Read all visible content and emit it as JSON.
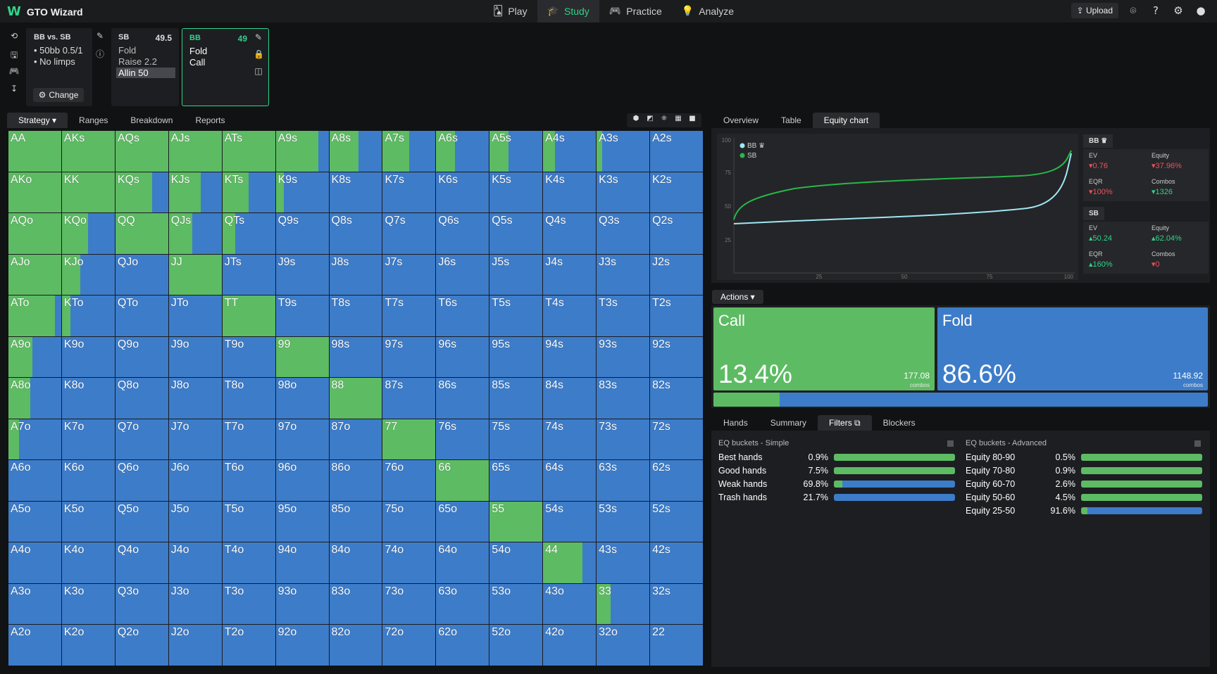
{
  "app": {
    "title": "GTO Wizard",
    "logo": "W"
  },
  "nav": [
    {
      "label": "Play",
      "icon": "cards-icon",
      "glyph": "🂡",
      "active": false
    },
    {
      "label": "Study",
      "icon": "graduation-cap-icon",
      "glyph": "🎓",
      "active": true
    },
    {
      "label": "Practice",
      "icon": "gamepad-icon",
      "glyph": "🎮",
      "active": false
    },
    {
      "label": "Analyze",
      "icon": "lightbulb-icon",
      "glyph": "💡",
      "active": false
    }
  ],
  "top_right": {
    "upload": "⇪ Upload",
    "icons": [
      "scan-icon",
      "help-icon",
      "settings-icon",
      "user-icon"
    ],
    "glyphs": [
      "⌾",
      "?",
      "⚙",
      "●"
    ]
  },
  "side_icons": [
    "⟲",
    "🖫",
    "🎮",
    "↧"
  ],
  "spot": {
    "title": "BB vs. SB",
    "lines": [
      "• 50bb 0.5/1",
      "• No limps"
    ],
    "change": "Change"
  },
  "card_sb": {
    "name": "SB",
    "stack": "49.5",
    "actions": [
      "Fold",
      "Raise 2.2",
      "Allin 50"
    ]
  },
  "card_bb": {
    "name": "BB",
    "stack": "49",
    "actions": [
      "Fold",
      "Call"
    ]
  },
  "left_tabs": [
    "Strategy ▾",
    "Ranges",
    "Breakdown",
    "Reports"
  ],
  "matrix": {
    "hands": [
      [
        "AA",
        "AKs",
        "AQs",
        "AJs",
        "ATs",
        "A9s",
        "A8s",
        "A7s",
        "A6s",
        "A5s",
        "A4s",
        "A3s",
        "A2s"
      ],
      [
        "AKo",
        "KK",
        "KQs",
        "KJs",
        "KTs",
        "K9s",
        "K8s",
        "K7s",
        "K6s",
        "K5s",
        "K4s",
        "K3s",
        "K2s"
      ],
      [
        "AQo",
        "KQo",
        "QQ",
        "QJs",
        "QTs",
        "Q9s",
        "Q8s",
        "Q7s",
        "Q6s",
        "Q5s",
        "Q4s",
        "Q3s",
        "Q2s"
      ],
      [
        "AJo",
        "KJo",
        "QJo",
        "JJ",
        "JTs",
        "J9s",
        "J8s",
        "J7s",
        "J6s",
        "J5s",
        "J4s",
        "J3s",
        "J2s"
      ],
      [
        "ATo",
        "KTo",
        "QTo",
        "JTo",
        "TT",
        "T9s",
        "T8s",
        "T7s",
        "T6s",
        "T5s",
        "T4s",
        "T3s",
        "T2s"
      ],
      [
        "A9o",
        "K9o",
        "Q9o",
        "J9o",
        "T9o",
        "99",
        "98s",
        "97s",
        "96s",
        "95s",
        "94s",
        "93s",
        "92s"
      ],
      [
        "A8o",
        "K8o",
        "Q8o",
        "J8o",
        "T8o",
        "98o",
        "88",
        "87s",
        "86s",
        "85s",
        "84s",
        "83s",
        "82s"
      ],
      [
        "A7o",
        "K7o",
        "Q7o",
        "J7o",
        "T7o",
        "97o",
        "87o",
        "77",
        "76s",
        "75s",
        "74s",
        "73s",
        "72s"
      ],
      [
        "A6o",
        "K6o",
        "Q6o",
        "J6o",
        "T6o",
        "96o",
        "86o",
        "76o",
        "66",
        "65s",
        "64s",
        "63s",
        "62s"
      ],
      [
        "A5o",
        "K5o",
        "Q5o",
        "J5o",
        "T5o",
        "95o",
        "85o",
        "75o",
        "65o",
        "55",
        "54s",
        "53s",
        "52s"
      ],
      [
        "A4o",
        "K4o",
        "Q4o",
        "J4o",
        "T4o",
        "94o",
        "84o",
        "74o",
        "64o",
        "54o",
        "44",
        "43s",
        "42s"
      ],
      [
        "A3o",
        "K3o",
        "Q3o",
        "J3o",
        "T3o",
        "93o",
        "83o",
        "73o",
        "63o",
        "53o",
        "43o",
        "33",
        "32s"
      ],
      [
        "A2o",
        "K2o",
        "Q2o",
        "J2o",
        "T2o",
        "92o",
        "82o",
        "72o",
        "62o",
        "52o",
        "42o",
        "32o",
        "22"
      ]
    ],
    "call_freq": [
      [
        1,
        1,
        1,
        1,
        1,
        0.8,
        0.55,
        0.5,
        0.35,
        0.35,
        0.22,
        0.1,
        0
      ],
      [
        1,
        1,
        0.7,
        0.6,
        0.5,
        0.15,
        0,
        0,
        0,
        0,
        0,
        0,
        0
      ],
      [
        1,
        0.5,
        1,
        0.45,
        0.25,
        0,
        0,
        0,
        0,
        0,
        0,
        0,
        0
      ],
      [
        1,
        0.35,
        0,
        1,
        0,
        0,
        0,
        0,
        0,
        0,
        0,
        0,
        0
      ],
      [
        0.88,
        0.16,
        0,
        0,
        1,
        0,
        0,
        0,
        0,
        0,
        0,
        0,
        0
      ],
      [
        0.46,
        0,
        0,
        0,
        0,
        1,
        0,
        0,
        0,
        0,
        0,
        0,
        0
      ],
      [
        0.42,
        0,
        0,
        0,
        0,
        0,
        1,
        0,
        0,
        0,
        0,
        0,
        0
      ],
      [
        0.2,
        0,
        0,
        0,
        0,
        0,
        0,
        1,
        0,
        0,
        0,
        0,
        0
      ],
      [
        0,
        0,
        0,
        0,
        0,
        0,
        0,
        0,
        1,
        0,
        0,
        0,
        0
      ],
      [
        0,
        0,
        0,
        0,
        0,
        0,
        0,
        0,
        0,
        1,
        0,
        0,
        0
      ],
      [
        0,
        0,
        0,
        0,
        0,
        0,
        0,
        0,
        0,
        0,
        0.75,
        0,
        0
      ],
      [
        0,
        0,
        0,
        0,
        0,
        0,
        0,
        0,
        0,
        0,
        0,
        0.27,
        0
      ],
      [
        0,
        0,
        0,
        0,
        0,
        0,
        0,
        0,
        0,
        0,
        0,
        0,
        0
      ]
    ]
  },
  "right_tabs": [
    "Overview",
    "Table",
    "Equity chart"
  ],
  "equity_chart": {
    "legend": [
      "BB ♛",
      "SB"
    ],
    "y_ticks": [
      "100",
      "75",
      "50",
      "25"
    ],
    "x_ticks": [
      "25",
      "50",
      "75",
      "100"
    ],
    "colors": {
      "bb": "#9ee8f5",
      "sb": "#27b84a"
    }
  },
  "stats": [
    {
      "player": "BB ♛",
      "ev": "▾0.76",
      "equity": "▾37.96%",
      "eqr": "▾100%",
      "combos": "▾1326",
      "signs": [
        "neg",
        "neg",
        "neg",
        "pos-val"
      ]
    },
    {
      "player": "SB",
      "ev": "▴50.24",
      "equity": "▴62.04%",
      "eqr": "▴160%",
      "combos": "▾0",
      "signs": [
        "pos-val",
        "pos-val",
        "pos-val",
        "neg"
      ]
    }
  ],
  "stat_labels": {
    "ev": "EV",
    "equity": "Equity",
    "eqr": "EQR",
    "combos": "Combos"
  },
  "actions": {
    "header": "Actions ▾",
    "call": {
      "name": "Call",
      "pct": "13.4%",
      "combos": "177.08",
      "combos_label": "combos",
      "frac": 0.134
    },
    "fold": {
      "name": "Fold",
      "pct": "86.6%",
      "combos": "1148.92",
      "combos_label": "combos"
    }
  },
  "bottom_tabs": [
    "Hands",
    "Summary",
    "Filters ⧉",
    "Blockers"
  ],
  "buckets_simple": {
    "title": "EQ buckets - Simple",
    "rows": [
      {
        "name": "Best hands",
        "pct": "0.9%",
        "frac": 1.0
      },
      {
        "name": "Good hands",
        "pct": "7.5%",
        "frac": 1.0
      },
      {
        "name": "Weak hands",
        "pct": "69.8%",
        "frac": 0.07
      },
      {
        "name": "Trash hands",
        "pct": "21.7%",
        "frac": 0.0
      }
    ]
  },
  "buckets_advanced": {
    "title": "EQ buckets - Advanced",
    "rows": [
      {
        "name": "Equity 80-90",
        "pct": "0.5%",
        "frac": 1.0
      },
      {
        "name": "Equity 70-80",
        "pct": "0.9%",
        "frac": 1.0
      },
      {
        "name": "Equity 60-70",
        "pct": "2.6%",
        "frac": 1.0
      },
      {
        "name": "Equity 50-60",
        "pct": "4.5%",
        "frac": 1.0
      },
      {
        "name": "Equity 25-50",
        "pct": "91.6%",
        "frac": 0.05
      }
    ]
  }
}
